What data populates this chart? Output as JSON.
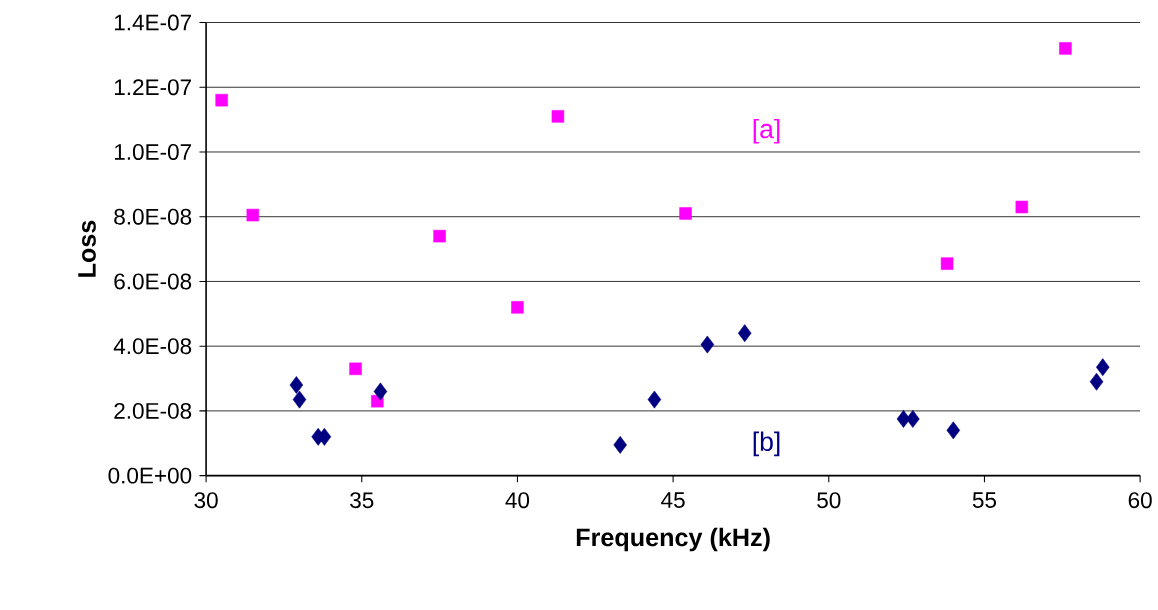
{
  "chart_data": {
    "type": "scatter",
    "xlabel": "Frequency (kHz)",
    "ylabel": "Loss",
    "xlim": [
      30,
      60
    ],
    "xticks": [
      30,
      35,
      40,
      45,
      50,
      55,
      60
    ],
    "ylim": [
      0,
      1.4e-07
    ],
    "yticks": [
      {
        "value": 0,
        "label": "0.0E+00"
      },
      {
        "value": 2e-08,
        "label": "2.0E-08"
      },
      {
        "value": 4e-08,
        "label": "4.0E-08"
      },
      {
        "value": 6e-08,
        "label": "6.0E-08"
      },
      {
        "value": 8e-08,
        "label": "8.0E-08"
      },
      {
        "value": 1e-07,
        "label": "1.0E-07"
      },
      {
        "value": 1.2e-07,
        "label": "1.2E-07"
      },
      {
        "value": 1.4e-07,
        "label": "1.4E-07"
      }
    ],
    "grid": "y",
    "series": [
      {
        "name": "[a]",
        "color": "#ff00ff",
        "marker": "square",
        "x": [
          30.5,
          31.5,
          34.8,
          35.5,
          37.5,
          40.0,
          41.3,
          45.4,
          53.8,
          56.2,
          57.6
        ],
        "values": [
          1.16e-07,
          8.05e-08,
          3.3e-08,
          2.3e-08,
          7.4e-08,
          5.2e-08,
          1.11e-07,
          8.1e-08,
          6.55e-08,
          8.3e-08,
          1.32e-07
        ]
      },
      {
        "name": "[b]",
        "color": "#000080",
        "marker": "diamond",
        "x": [
          32.9,
          33.0,
          33.6,
          33.8,
          35.6,
          43.3,
          44.4,
          46.1,
          47.3,
          52.4,
          52.7,
          54.0,
          58.6,
          58.8
        ],
        "values": [
          2.8e-08,
          2.35e-08,
          1.2e-08,
          1.2e-08,
          2.6e-08,
          9.5e-09,
          2.35e-08,
          4.05e-08,
          4.4e-08,
          1.75e-08,
          1.75e-08,
          1.4e-08,
          2.9e-08,
          3.35e-08
        ]
      }
    ]
  }
}
